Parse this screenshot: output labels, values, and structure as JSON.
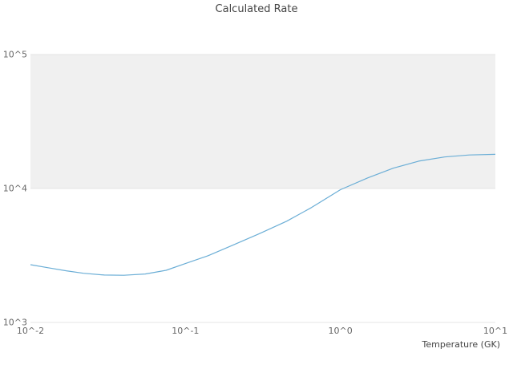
{
  "chart_data": {
    "type": "line",
    "title": "Calculated Rate",
    "xlabel": "Temperature (GK)",
    "ylabel": "",
    "xscale": "log",
    "yscale": "log",
    "xlim": [
      0.01,
      10
    ],
    "ylim": [
      1000,
      100000
    ],
    "x_tick_values": [
      0.01,
      0.1,
      1,
      10
    ],
    "x_tick_labels": [
      "10^-2",
      "10^-1",
      "10^0",
      "10^1"
    ],
    "y_tick_values": [
      1000,
      10000,
      100000
    ],
    "y_tick_labels": [
      "10^3",
      "10^4",
      "10^5"
    ],
    "shaded_band_y": [
      10000,
      100000
    ],
    "band_color": "#f0f0f0",
    "gridline_color": "#e5e5e5",
    "line_color": "#6baed6",
    "legend": "none",
    "series": [
      {
        "name": "calculated-rate",
        "x": [
          0.01,
          0.013,
          0.017,
          0.022,
          0.03,
          0.04,
          0.055,
          0.075,
          0.1,
          0.14,
          0.2,
          0.3,
          0.45,
          0.65,
          1.0,
          1.5,
          2.2,
          3.2,
          4.7,
          6.8,
          10
        ],
        "y": [
          2700,
          2560,
          2430,
          2330,
          2260,
          2250,
          2300,
          2450,
          2750,
          3150,
          3750,
          4600,
          5700,
          7200,
          9800,
          12000,
          14200,
          16000,
          17200,
          17800,
          18000
        ]
      }
    ]
  }
}
